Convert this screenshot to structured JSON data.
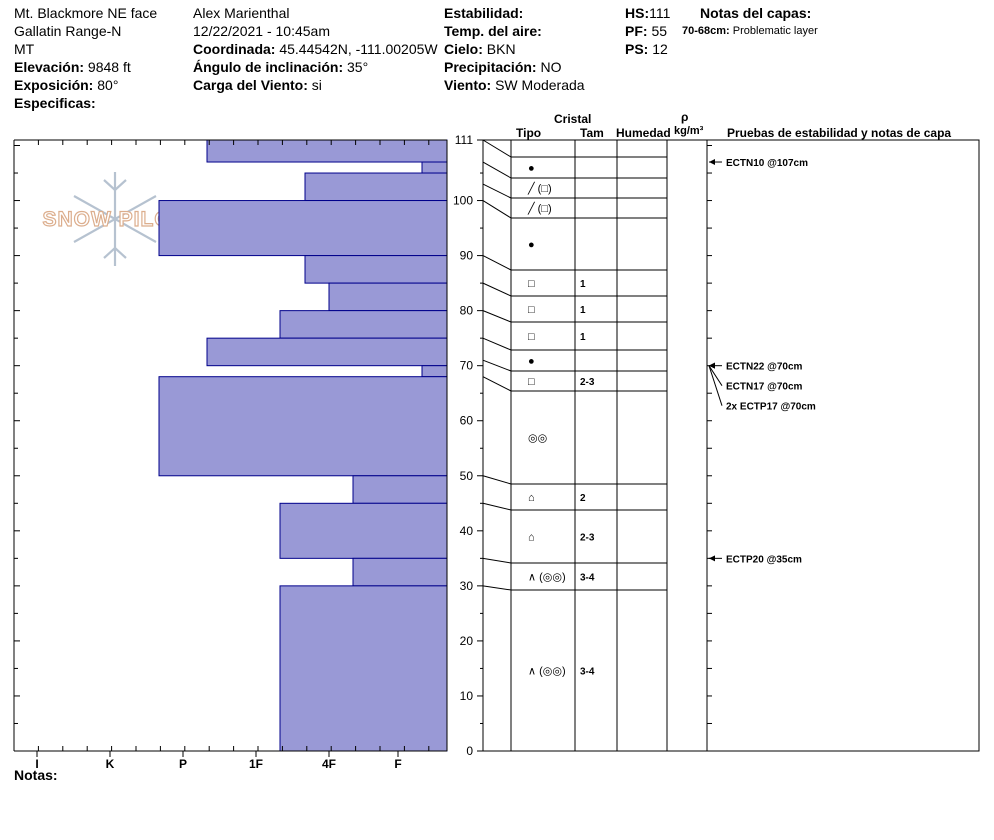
{
  "header": {
    "location": "Mt. Blackmore NE face",
    "range": "Gallatin Range-N",
    "state": "MT",
    "elevation_label": "Elevación:",
    "elevation_value": "9848 ft",
    "aspect_label": "Exposición:",
    "aspect_value": "80°",
    "specifics_label": "Especificas:",
    "observer": "Alex Marienthal",
    "datetime": "12/22/2021 - 10:45am",
    "coord_label": "Coordinada:",
    "coord_value": "45.44542N, -111.00205W",
    "slope_label": "Ángulo de inclinación:",
    "slope_value": "35°",
    "wind_load_label": "Carga del Viento:",
    "wind_load_value": "si",
    "stability_label": "Estabilidad:",
    "air_temp_label": "Temp. del aire:",
    "sky_label": "Cielo:",
    "sky_value": "BKN",
    "precip_label": "Precipitación:",
    "precip_value": "NO",
    "wind_label": "Viento:",
    "wind_value": "SW Moderada",
    "hs_label": "HS:",
    "hs_value": "111",
    "pf_label": "PF:",
    "pf_value": "55",
    "ps_label": "PS:",
    "ps_value": "12",
    "layer_notes_label": "Notas del capas:",
    "layer_note_depth": "70-68cm:",
    "layer_note_text": "Problematic layer"
  },
  "footer": {
    "notes_label": "Notas:"
  },
  "logo_text": "SNOW PILOT",
  "colors": {
    "bar_fill": "#9999d6",
    "bar_stroke": "#00008b",
    "grid": "#000000"
  },
  "columns": {
    "crystal": "Cristal",
    "type": "Tipo",
    "size": "Tam",
    "moisture": "Humedad",
    "rho": "ρ",
    "density_unit": "kg/m³",
    "tests": "Pruebas de estabilidad y notas de capa"
  },
  "chart_data": {
    "type": "bar",
    "orientation": "horizontal",
    "x_categories": [
      "I",
      "K",
      "P",
      "1F",
      "4F",
      "F"
    ],
    "ylim": [
      0,
      111
    ],
    "y_ticks": [
      0,
      10,
      20,
      30,
      40,
      50,
      60,
      70,
      80,
      90,
      100,
      111
    ],
    "grid": false,
    "layers": [
      {
        "top": 111,
        "bottom": 107,
        "hardness": "P+"
      },
      {
        "top": 107,
        "bottom": 105,
        "hardness": "F+"
      },
      {
        "top": 105,
        "bottom": 100,
        "hardness": "4F-"
      },
      {
        "top": 100,
        "bottom": 90,
        "hardness": "P-"
      },
      {
        "top": 90,
        "bottom": 85,
        "hardness": "4F-"
      },
      {
        "top": 85,
        "bottom": 80,
        "hardness": "4F"
      },
      {
        "top": 80,
        "bottom": 75,
        "hardness": "1F+"
      },
      {
        "top": 75,
        "bottom": 70,
        "hardness": "P+"
      },
      {
        "top": 70,
        "bottom": 68,
        "hardness": "F+"
      },
      {
        "top": 68,
        "bottom": 50,
        "hardness": "P-"
      },
      {
        "top": 50,
        "bottom": 45,
        "hardness": "4F+"
      },
      {
        "top": 45,
        "bottom": 35,
        "hardness": "1F+"
      },
      {
        "top": 35,
        "bottom": 30,
        "hardness": "4F+"
      },
      {
        "top": 30,
        "bottom": 0,
        "hardness": "1F+"
      }
    ],
    "crystal_rows": [
      {
        "top": 111,
        "bottom": 107,
        "type": "●",
        "size": ""
      },
      {
        "top": 107,
        "bottom": 103,
        "type": "╱ (□)",
        "size": ""
      },
      {
        "top": 103,
        "bottom": 100,
        "type": "╱ (□)",
        "size": ""
      },
      {
        "top": 100,
        "bottom": 90,
        "type": "●",
        "size": ""
      },
      {
        "top": 90,
        "bottom": 85,
        "type": "□",
        "size": "1"
      },
      {
        "top": 85,
        "bottom": 80,
        "type": "□",
        "size": "1"
      },
      {
        "top": 80,
        "bottom": 75,
        "type": "□",
        "size": "1"
      },
      {
        "top": 75,
        "bottom": 71,
        "type": "●",
        "size": ""
      },
      {
        "top": 71,
        "bottom": 68,
        "type": "□",
        "size": "2-3"
      },
      {
        "top": 68,
        "bottom": 50,
        "type": "◎◎",
        "size": ""
      },
      {
        "top": 50,
        "bottom": 45,
        "type": "⌂",
        "size": "2"
      },
      {
        "top": 45,
        "bottom": 35,
        "type": "⌂",
        "size": "2-3"
      },
      {
        "top": 35,
        "bottom": 30,
        "type": "∧ (◎◎)",
        "size": "3-4"
      },
      {
        "top": 30,
        "bottom": 0,
        "type": "∧ (◎◎)",
        "size": "3-4"
      }
    ],
    "tests": [
      {
        "depth": 107,
        "label": "ECTN10 @107cm"
      },
      {
        "depth": 70,
        "label": "ECTN22 @70cm"
      },
      {
        "depth": 70,
        "label": "ECTN17 @70cm"
      },
      {
        "depth": 70,
        "label": "2x ECTP17 @70cm"
      },
      {
        "depth": 35,
        "label": "ECTP20 @35cm"
      }
    ]
  }
}
